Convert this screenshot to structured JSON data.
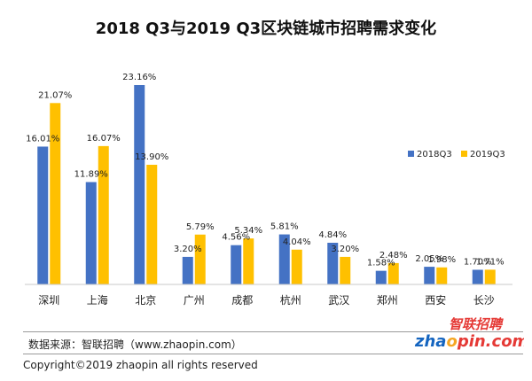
{
  "chart_data": {
    "type": "bar",
    "title": "2018 Q3与2019 Q3区块链城市招聘需求变化",
    "categories": [
      "深圳",
      "上海",
      "北京",
      "广州",
      "成都",
      "杭州",
      "武汉",
      "郑州",
      "西安",
      "长沙"
    ],
    "series": [
      {
        "name": "2018Q3",
        "color": "#4472C4",
        "values": [
          16.01,
          11.89,
          23.16,
          3.2,
          4.56,
          5.81,
          4.84,
          1.58,
          2.05,
          1.7
        ],
        "labels": [
          "16.01%",
          "11.89%",
          "23.16%",
          "3.20%",
          "4.56%",
          "5.81%",
          "4.84%",
          "1.58%",
          "2.05%",
          "1.70%"
        ]
      },
      {
        "name": "2019Q3",
        "color": "#FFC000",
        "values": [
          21.07,
          16.07,
          13.9,
          5.79,
          5.34,
          4.04,
          3.2,
          2.48,
          1.98,
          1.71
        ],
        "labels": [
          "21.07%",
          "16.07%",
          "13.90%",
          "5.79%",
          "5.34%",
          "4.04%",
          "3.20%",
          "2.48%",
          "1.98%",
          "1.71%"
        ]
      }
    ],
    "ylim": [
      0,
      25
    ],
    "grid": false,
    "legend_position": "right"
  },
  "footer": {
    "source": "数据来源：智联招聘（www.zhaopin.com）",
    "copyright": "Copyright©2019 zhaopin all rights reserved"
  },
  "logo": {
    "text_cn": "智联招聘",
    "text_en": "zhaopin.com",
    "colors": {
      "red": "#E53935",
      "blue": "#1565C0",
      "orange": "#F5A623"
    }
  }
}
